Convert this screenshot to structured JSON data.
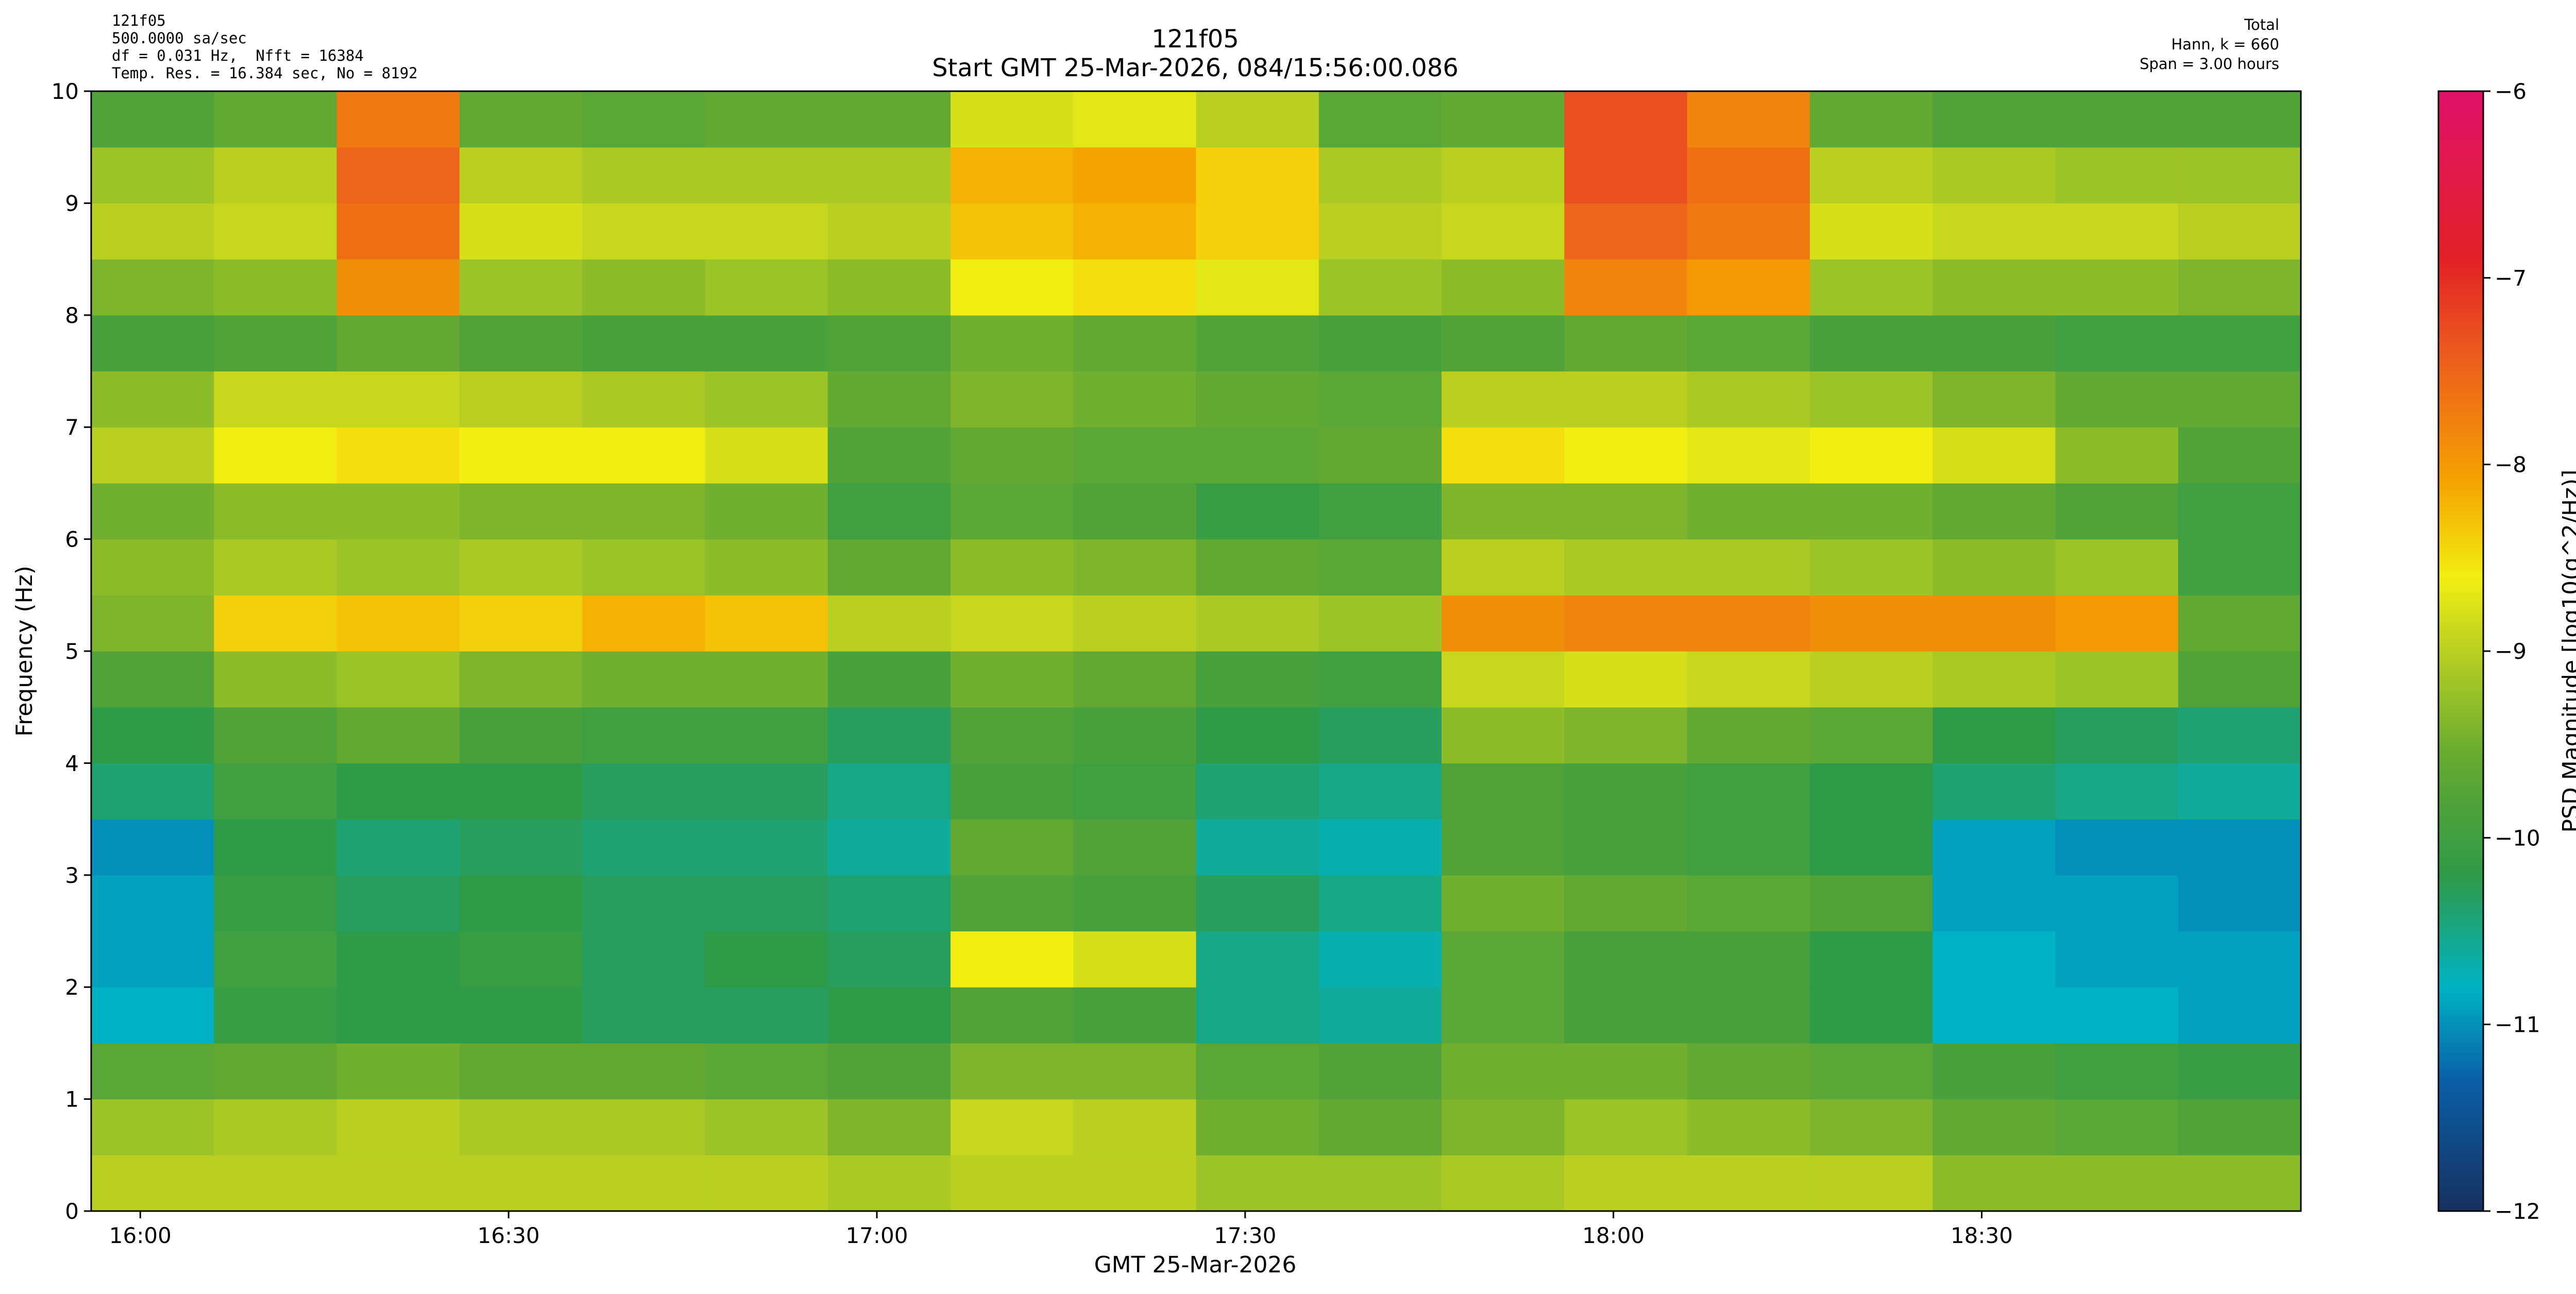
{
  "chart_data": {
    "type": "heatmap",
    "title": "121f05",
    "subtitle": "Start GMT 25-Mar-2026, 084/15:56:00.086",
    "info_left": [
      "121f05",
      "500.0000 sa/sec",
      "df = 0.031 Hz,  Nfft = 16384",
      "Temp. Res. = 16.384 sec, No = 8192"
    ],
    "info_right": [
      "Total",
      "Hann, k = 660",
      "Span = 3.00 hours"
    ],
    "xlabel": "GMT 25-Mar-2026",
    "ylabel": "Frequency (Hz)",
    "xlim": [
      "15:56",
      "18:56"
    ],
    "xticks": [
      "16:00",
      "16:30",
      "17:00",
      "17:30",
      "18:00",
      "18:30"
    ],
    "ylim": [
      0,
      10
    ],
    "yticks": [
      0,
      1,
      2,
      3,
      4,
      5,
      6,
      7,
      8,
      9,
      10
    ],
    "x_bins": [
      "15:56",
      "16:06",
      "16:16",
      "16:26",
      "16:36",
      "16:46",
      "16:56",
      "17:06",
      "17:16",
      "17:26",
      "17:36",
      "17:46",
      "17:56",
      "18:06",
      "18:16",
      "18:26",
      "18:36",
      "18:46",
      "18:56"
    ],
    "y_bins": [
      0,
      0.5,
      1,
      1.5,
      2,
      2.5,
      3,
      3.5,
      4,
      4.5,
      5,
      5.5,
      6,
      6.5,
      7,
      7.5,
      8,
      8.5,
      9,
      9.5,
      10
    ],
    "values": [
      [
        -9,
        -9,
        -9,
        -9,
        -9,
        -9,
        -9.1,
        -9,
        -9,
        -9.2,
        -9.2,
        -9.1,
        -9,
        -9,
        -9,
        -9.3,
        -9.3,
        -9.3
      ],
      [
        -9.2,
        -9.1,
        -9,
        -9.1,
        -9.1,
        -9.2,
        -9.4,
        -8.9,
        -9,
        -9.5,
        -9.6,
        -9.4,
        -9.2,
        -9.3,
        -9.4,
        -9.6,
        -9.7,
        -9.8
      ],
      [
        -9.7,
        -9.6,
        -9.5,
        -9.6,
        -9.6,
        -9.7,
        -9.8,
        -9.4,
        -9.4,
        -9.7,
        -9.8,
        -9.5,
        -9.5,
        -9.6,
        -9.7,
        -9.9,
        -10,
        -10.1
      ],
      [
        -10.8,
        -10.1,
        -10.2,
        -10.2,
        -10.3,
        -10.3,
        -10.2,
        -9.8,
        -9.9,
        -10.5,
        -10.6,
        -9.7,
        -9.9,
        -9.9,
        -10.2,
        -10.8,
        -10.8,
        -10.9
      ],
      [
        -10.9,
        -10,
        -10.2,
        -10.1,
        -10.3,
        -10.2,
        -10.3,
        -8.6,
        -8.8,
        -10.5,
        -10.7,
        -9.7,
        -9.9,
        -9.9,
        -10.2,
        -10.8,
        -10.9,
        -10.9
      ],
      [
        -10.9,
        -10.1,
        -10.3,
        -10.2,
        -10.3,
        -10.3,
        -10.4,
        -9.8,
        -9.9,
        -10.3,
        -10.5,
        -9.5,
        -9.6,
        -9.7,
        -9.8,
        -10.9,
        -10.9,
        -11
      ],
      [
        -11,
        -10.2,
        -10.4,
        -10.3,
        -10.4,
        -10.4,
        -10.6,
        -9.6,
        -9.8,
        -10.6,
        -10.7,
        -9.8,
        -9.9,
        -10,
        -10.2,
        -10.9,
        -11,
        -11
      ],
      [
        -10.4,
        -10,
        -10.2,
        -10.2,
        -10.3,
        -10.3,
        -10.5,
        -9.9,
        -10,
        -10.4,
        -10.5,
        -9.8,
        -9.9,
        -10,
        -10.2,
        -10.4,
        -10.5,
        -10.6
      ],
      [
        -10.2,
        -9.8,
        -9.6,
        -9.9,
        -10,
        -10,
        -10.3,
        -9.8,
        -9.9,
        -10.2,
        -10.3,
        -9.3,
        -9.4,
        -9.6,
        -9.7,
        -10.2,
        -10.3,
        -10.4
      ],
      [
        -9.8,
        -9.3,
        -9.2,
        -9.4,
        -9.5,
        -9.5,
        -9.9,
        -9.5,
        -9.6,
        -9.9,
        -10,
        -8.9,
        -8.8,
        -8.9,
        -9,
        -9.1,
        -9.2,
        -9.8
      ],
      [
        -9.4,
        -8.4,
        -8.3,
        -8.4,
        -8.2,
        -8.3,
        -9,
        -8.9,
        -9,
        -9.1,
        -9.2,
        -7.9,
        -7.8,
        -7.8,
        -7.9,
        -7.9,
        -8,
        -9.6
      ],
      [
        -9.3,
        -9.1,
        -9.2,
        -9.1,
        -9.2,
        -9.3,
        -9.6,
        -9.3,
        -9.4,
        -9.6,
        -9.7,
        -9,
        -9.1,
        -9.1,
        -9.2,
        -9.3,
        -9.2,
        -10
      ],
      [
        -9.5,
        -9.3,
        -9.3,
        -9.4,
        -9.4,
        -9.5,
        -10,
        -9.7,
        -9.8,
        -10.1,
        -10,
        -9.4,
        -9.4,
        -9.5,
        -9.5,
        -9.6,
        -9.8,
        -10
      ],
      [
        -9,
        -8.6,
        -8.5,
        -8.6,
        -8.6,
        -8.8,
        -9.8,
        -9.6,
        -9.7,
        -9.7,
        -9.6,
        -8.5,
        -8.6,
        -8.7,
        -8.6,
        -8.8,
        -9.3,
        -9.8
      ],
      [
        -9.3,
        -8.9,
        -8.9,
        -9,
        -9.1,
        -9.2,
        -9.6,
        -9.4,
        -9.5,
        -9.6,
        -9.7,
        -9,
        -9,
        -9.1,
        -9.2,
        -9.4,
        -9.6,
        -9.6
      ],
      [
        -9.9,
        -9.8,
        -9.6,
        -9.8,
        -9.9,
        -9.9,
        -9.8,
        -9.5,
        -9.6,
        -9.8,
        -9.9,
        -9.8,
        -9.6,
        -9.7,
        -9.9,
        -9.9,
        -10,
        -10
      ],
      [
        -9.4,
        -9.3,
        -7.9,
        -9.2,
        -9.3,
        -9.2,
        -9.3,
        -8.6,
        -8.5,
        -8.7,
        -9.2,
        -9.3,
        -7.8,
        -8,
        -9.2,
        -9.3,
        -9.3,
        -9.4
      ],
      [
        -9,
        -8.9,
        -7.6,
        -8.8,
        -8.9,
        -8.9,
        -9,
        -8.3,
        -8.2,
        -8.4,
        -9,
        -8.9,
        -7.5,
        -7.7,
        -8.8,
        -8.9,
        -8.9,
        -9
      ],
      [
        -9.2,
        -9,
        -7.5,
        -9,
        -9.1,
        -9.1,
        -9.1,
        -8.2,
        -8.1,
        -8.4,
        -9.1,
        -9,
        -7.3,
        -7.6,
        -9,
        -9.1,
        -9.2,
        -9.2
      ],
      [
        -9.8,
        -9.6,
        -7.7,
        -9.6,
        -9.7,
        -9.6,
        -9.6,
        -8.8,
        -8.7,
        -9,
        -9.7,
        -9.6,
        -7.3,
        -7.8,
        -9.6,
        -9.8,
        -9.8,
        -9.8
      ]
    ],
    "colorbar": {
      "label": "PSD Magnitude [log10(g^2/Hz)]",
      "lim": [
        -12,
        -6
      ],
      "ticks": [
        {
          "value": -6,
          "label": "−6"
        },
        {
          "value": -7,
          "label": "−7"
        },
        {
          "value": -8,
          "label": "−8"
        },
        {
          "value": -9,
          "label": "−9"
        },
        {
          "value": -10,
          "label": "−10"
        },
        {
          "value": -11,
          "label": "−11"
        },
        {
          "value": -12,
          "label": "−12"
        }
      ]
    },
    "colorscale": [
      {
        "value": -12,
        "color": "#17305e"
      },
      {
        "value": -11.3,
        "color": "#0a5fa8"
      },
      {
        "value": -10.8,
        "color": "#00b3c4"
      },
      {
        "value": -10.2,
        "color": "#2f9a48"
      },
      {
        "value": -9.6,
        "color": "#62a832"
      },
      {
        "value": -9,
        "color": "#b9d022"
      },
      {
        "value": -8.6,
        "color": "#f2ee12"
      },
      {
        "value": -8.1,
        "color": "#f5a400"
      },
      {
        "value": -7.4,
        "color": "#ec5a1e"
      },
      {
        "value": -6.9,
        "color": "#e22126"
      },
      {
        "value": -6,
        "color": "#e0106a"
      }
    ],
    "title_color": "#000080"
  }
}
